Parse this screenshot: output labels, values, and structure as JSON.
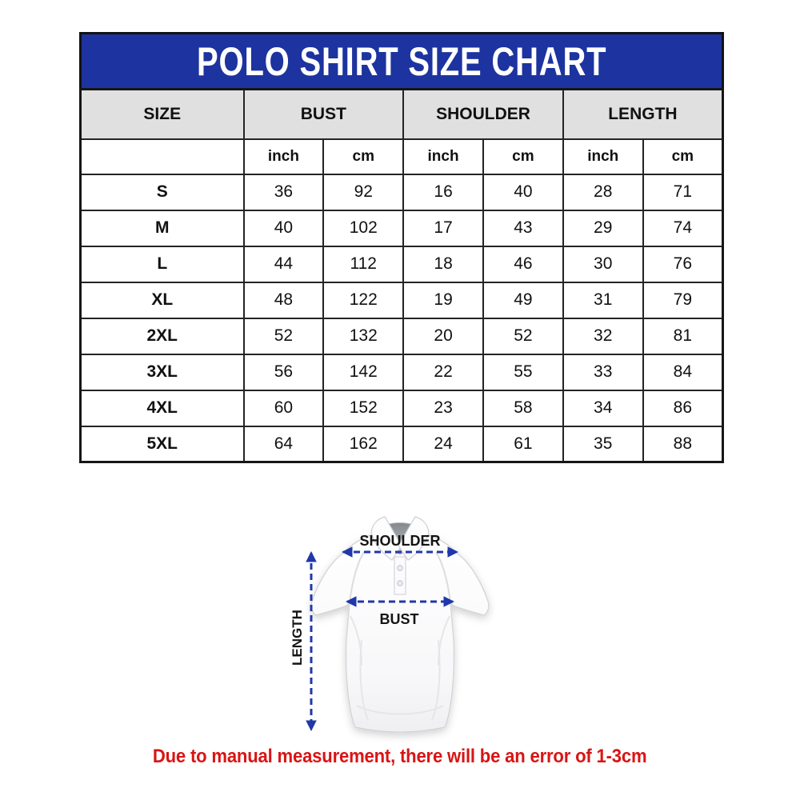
{
  "page": {
    "title": "POLO SHIRT SIZE CHART"
  },
  "size_chart": {
    "header_groups": [
      {
        "label": "SIZE"
      },
      {
        "label": "BUST"
      },
      {
        "label": "SHOULDER"
      },
      {
        "label": "LENGTH"
      }
    ],
    "unit_labels": [
      "",
      "inch",
      "cm",
      "inch",
      "cm",
      "inch",
      "cm"
    ],
    "rows": [
      {
        "size": "S",
        "values": [
          36,
          92,
          16,
          40,
          28,
          71
        ]
      },
      {
        "size": "M",
        "values": [
          40,
          102,
          17,
          43,
          29,
          74
        ]
      },
      {
        "size": "L",
        "values": [
          44,
          112,
          18,
          46,
          30,
          76
        ]
      },
      {
        "size": "XL",
        "values": [
          48,
          122,
          19,
          49,
          31,
          79
        ]
      },
      {
        "size": "2XL",
        "values": [
          52,
          132,
          20,
          52,
          32,
          81
        ]
      },
      {
        "size": "3XL",
        "values": [
          56,
          142,
          22,
          55,
          33,
          84
        ]
      },
      {
        "size": "4XL",
        "values": [
          60,
          152,
          23,
          58,
          34,
          86
        ]
      },
      {
        "size": "5XL",
        "values": [
          64,
          162,
          24,
          61,
          35,
          88
        ]
      }
    ]
  },
  "diagram": {
    "shoulder_label": "SHOULDER",
    "bust_label": "BUST",
    "length_label": "LENGTH"
  },
  "note": {
    "text": "Due to manual measurement, there will be an error of 1-3cm"
  },
  "colors": {
    "title_bar_blue": "#1d339f",
    "arrow_blue": "#2038a8",
    "header_gray": "#e0e0e0",
    "border_black": "#161616",
    "note_red": "#d91414"
  }
}
